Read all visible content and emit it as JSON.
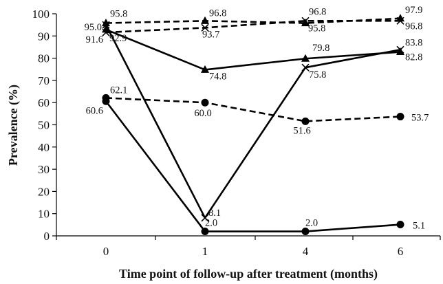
{
  "chart_data": {
    "type": "line",
    "title": "",
    "xlabel": "Time point of follow-up after treatment (months)",
    "ylabel": "Prevalence (%)",
    "categories": [
      "0",
      "1",
      "4",
      "6"
    ],
    "ylim": [
      0,
      100
    ],
    "yticks": [
      0,
      10,
      20,
      30,
      40,
      50,
      60,
      70,
      80,
      90,
      100
    ],
    "grid": false,
    "legend": "none",
    "series": [
      {
        "marker": "triangle",
        "dash": true,
        "values": [
          95.8,
          96.8,
          95.8,
          97.9
        ],
        "labels": [
          "95.8",
          "96.8",
          "95.8",
          "97.9"
        ]
      },
      {
        "marker": "cross",
        "dash": true,
        "values": [
          91.6,
          93.7,
          96.8,
          96.8
        ],
        "labels": [
          "91.6",
          "93.7",
          "96.8",
          "96.8"
        ]
      },
      {
        "marker": "triangle",
        "dash": false,
        "values": [
          92.9,
          74.8,
          79.8,
          82.8
        ],
        "labels": [
          "92.9",
          "74.8",
          "79.8",
          "82.8"
        ]
      },
      {
        "marker": "cross",
        "dash": false,
        "values": [
          95.0,
          8.1,
          75.8,
          83.8
        ],
        "labels": [
          "95.0",
          "8.1",
          "75.8",
          "83.8"
        ]
      },
      {
        "marker": "circle",
        "dash": true,
        "values": [
          62.1,
          60.0,
          51.6,
          53.7
        ],
        "labels": [
          "62.1",
          "60.0",
          "51.6",
          "53.7"
        ]
      },
      {
        "marker": "circle",
        "dash": false,
        "values": [
          60.6,
          2.0,
          2.0,
          5.1
        ],
        "labels": [
          "60.6",
          "2.0",
          "2.0",
          "5.1"
        ]
      }
    ]
  }
}
